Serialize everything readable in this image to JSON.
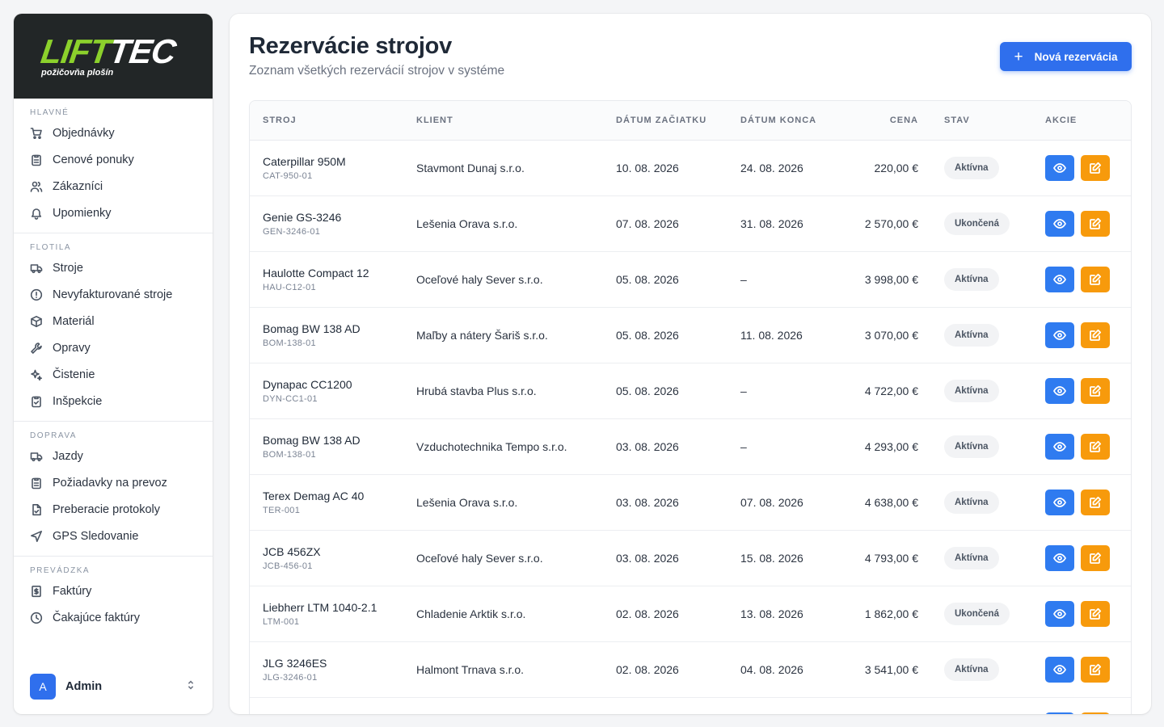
{
  "brand": {
    "logo_lift": "LIFT",
    "logo_tec": "TEC",
    "logo_sub": "požičovňa plošín"
  },
  "sidebar": {
    "sections": [
      {
        "title": "HLAVNÉ",
        "items": [
          {
            "label": "Objednávky",
            "icon": "cart-icon"
          },
          {
            "label": "Cenové ponuky",
            "icon": "clipboard-icon"
          },
          {
            "label": "Zákazníci",
            "icon": "users-icon"
          },
          {
            "label": "Upomienky",
            "icon": "bell-icon"
          }
        ]
      },
      {
        "title": "FLOTILA",
        "items": [
          {
            "label": "Stroje",
            "icon": "truck-icon"
          },
          {
            "label": "Nevyfakturované stroje",
            "icon": "alert-circle-icon"
          },
          {
            "label": "Materiál",
            "icon": "box-icon"
          },
          {
            "label": "Opravy",
            "icon": "wrench-icon"
          },
          {
            "label": "Čistenie",
            "icon": "sparkles-icon"
          },
          {
            "label": "Inšpekcie",
            "icon": "clipboard-check-icon"
          }
        ]
      },
      {
        "title": "DOPRAVA",
        "items": [
          {
            "label": "Jazdy",
            "icon": "truck-icon"
          },
          {
            "label": "Požiadavky na prevoz",
            "icon": "clipboard-icon"
          },
          {
            "label": "Preberacie protokoly",
            "icon": "file-check-icon"
          },
          {
            "label": "GPS Sledovanie",
            "icon": "navigation-icon"
          }
        ]
      },
      {
        "title": "PREVÁDZKA",
        "items": [
          {
            "label": "Faktúry",
            "icon": "invoice-icon"
          },
          {
            "label": "Čakajúce faktúry",
            "icon": "clock-icon"
          }
        ]
      }
    ]
  },
  "user": {
    "initial": "A",
    "name": "Admin"
  },
  "page": {
    "title": "Rezervácie strojov",
    "subtitle": "Zoznam všetkých rezervácií strojov v systéme",
    "new_button": "Nová rezervácia"
  },
  "table": {
    "headers": [
      "STROJ",
      "KLIENT",
      "DÁTUM ZAČIATKU",
      "DÁTUM KONCA",
      "CENA",
      "STAV",
      "AKCIE"
    ],
    "rows": [
      {
        "name": "Caterpillar 950M",
        "code": "CAT-950-01",
        "client": "Stavmont Dunaj s.r.o.",
        "start": "10. 08. 2026",
        "end": "24. 08. 2026",
        "price": "220,00 €",
        "status": "Aktívna"
      },
      {
        "name": "Genie GS-3246",
        "code": "GEN-3246-01",
        "client": "Lešenia Orava s.r.o.",
        "start": "07. 08. 2026",
        "end": "31. 08. 2026",
        "price": "2 570,00 €",
        "status": "Ukončená"
      },
      {
        "name": "Haulotte Compact 12",
        "code": "HAU-C12-01",
        "client": "Oceľové haly Sever s.r.o.",
        "start": "05. 08. 2026",
        "end": "–",
        "price": "3 998,00 €",
        "status": "Aktívna"
      },
      {
        "name": "Bomag BW 138 AD",
        "code": "BOM-138-01",
        "client": "Maľby a nátery Šariš s.r.o.",
        "start": "05. 08. 2026",
        "end": "11. 08. 2026",
        "price": "3 070,00 €",
        "status": "Aktívna"
      },
      {
        "name": "Dynapac CC1200",
        "code": "DYN-CC1-01",
        "client": "Hrubá stavba Plus s.r.o.",
        "start": "05. 08. 2026",
        "end": "–",
        "price": "4 722,00 €",
        "status": "Aktívna"
      },
      {
        "name": "Bomag BW 138 AD",
        "code": "BOM-138-01",
        "client": "Vzduchotechnika Tempo s.r.o.",
        "start": "03. 08. 2026",
        "end": "–",
        "price": "4 293,00 €",
        "status": "Aktívna"
      },
      {
        "name": "Terex Demag AC 40",
        "code": "TER-001",
        "client": "Lešenia Orava s.r.o.",
        "start": "03. 08. 2026",
        "end": "07. 08. 2026",
        "price": "4 638,00 €",
        "status": "Aktívna"
      },
      {
        "name": "JCB 456ZX",
        "code": "JCB-456-01",
        "client": "Oceľové haly Sever s.r.o.",
        "start": "03. 08. 2026",
        "end": "15. 08. 2026",
        "price": "4 793,00 €",
        "status": "Aktívna"
      },
      {
        "name": "Liebherr LTM 1040-2.1",
        "code": "LTM-001",
        "client": "Chladenie Arktik s.r.o.",
        "start": "02. 08. 2026",
        "end": "13. 08. 2026",
        "price": "1 862,00 €",
        "status": "Ukončená"
      },
      {
        "name": "JLG 3246ES",
        "code": "JLG-3246-01",
        "client": "Halmont Trnava s.r.o.",
        "start": "02. 08. 2026",
        "end": "04. 08. 2026",
        "price": "3 541,00 €",
        "status": "Aktívna"
      },
      {
        "name": "",
        "code": "",
        "client": "",
        "start": "",
        "end": "",
        "price": "",
        "status": ""
      }
    ]
  }
}
